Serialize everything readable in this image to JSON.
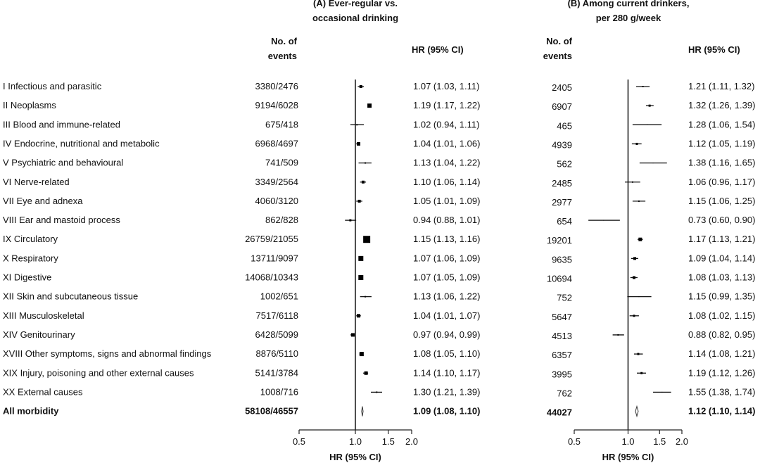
{
  "chart_data": {
    "type": "forest",
    "x_axis_label": "HR (95% CI)",
    "x_scale": "log",
    "x_ticks": [
      0.5,
      1.0,
      1.5,
      2.0
    ],
    "x_tick_labels": [
      "0.5",
      "1.0",
      "1.5",
      "2.0"
    ],
    "reference_line": 1.0,
    "categories": [
      "I Infectious and parasitic",
      "II Neoplasms",
      "III Blood and immune-related",
      "IV Endocrine, nutritional and metabolic",
      "V Psychiatric and behavioural",
      "VI Nerve-related",
      "VII Eye and adnexa",
      "VIII Ear and mastoid process",
      "IX Circulatory",
      "X Respiratory",
      "XI Digestive",
      "XII Skin and subcutaneous tissue",
      "XIII Musculoskeletal",
      "XIV Genitourinary",
      "XVIII Other symptoms, signs and abnormal findings",
      "XIX Injury, poisoning and other external causes",
      "XX External causes",
      "All morbidity"
    ],
    "panels": [
      {
        "title_line1": "(A) Ever-regular vs.",
        "title_line2": "occasional drinking",
        "events_header_line1": "No. of",
        "events_header_line2": "events",
        "hr_header": "HR (95% CI)",
        "events": [
          "3380/2476",
          "9194/6028",
          "675/418",
          "6968/4697",
          "741/509",
          "3349/2564",
          "4060/3120",
          "862/828",
          "26759/21055",
          "13711/9097",
          "14068/10343",
          "1002/651",
          "7517/6118",
          "6428/5099",
          "8876/5110",
          "5141/3784",
          "1008/716",
          "58108/46557"
        ],
        "hr_text": [
          "1.07 (1.03, 1.11)",
          "1.19 (1.17, 1.22)",
          "1.02 (0.94, 1.11)",
          "1.04 (1.01, 1.06)",
          "1.13 (1.04, 1.22)",
          "1.10 (1.06, 1.14)",
          "1.05 (1.01, 1.09)",
          "0.94 (0.88, 1.01)",
          "1.15 (1.13, 1.16)",
          "1.07 (1.06, 1.09)",
          "1.07 (1.05, 1.09)",
          "1.13 (1.06, 1.22)",
          "1.04 (1.01, 1.07)",
          "0.97 (0.94, 0.99)",
          "1.08 (1.05, 1.10)",
          "1.14 (1.10, 1.17)",
          "1.30 (1.21, 1.39)",
          "1.09 (1.08, 1.10)"
        ],
        "hr": [
          1.07,
          1.19,
          1.02,
          1.04,
          1.13,
          1.1,
          1.05,
          0.94,
          1.15,
          1.07,
          1.07,
          1.13,
          1.04,
          0.97,
          1.08,
          1.14,
          1.3,
          1.09
        ],
        "lo": [
          1.03,
          1.17,
          0.94,
          1.01,
          1.04,
          1.06,
          1.01,
          0.88,
          1.13,
          1.06,
          1.05,
          1.06,
          1.01,
          0.94,
          1.05,
          1.1,
          1.21,
          1.08
        ],
        "hi": [
          1.11,
          1.22,
          1.11,
          1.06,
          1.22,
          1.14,
          1.09,
          1.01,
          1.16,
          1.09,
          1.09,
          1.22,
          1.07,
          0.99,
          1.1,
          1.17,
          1.39,
          1.1
        ],
        "box_size": [
          4,
          6,
          2,
          5,
          2,
          4,
          4,
          3,
          10,
          7,
          7,
          2,
          5,
          5,
          6,
          5,
          2,
          0
        ]
      },
      {
        "title_line1": "(B) Among current drinkers,",
        "title_line2": "per 280 g/week",
        "events_header_line1": "No. of",
        "events_header_line2": "events",
        "hr_header": "HR (95% CI)",
        "events": [
          "2405",
          "6907",
          "465",
          "4939",
          "562",
          "2485",
          "2977",
          "654",
          "19201",
          "9635",
          "10694",
          "752",
          "5647",
          "4513",
          "6357",
          "3995",
          "762",
          "44027"
        ],
        "hr_text": [
          "1.21 (1.11, 1.32)",
          "1.32 (1.26, 1.39)",
          "1.28 (1.06, 1.54)",
          "1.12 (1.05, 1.19)",
          "1.38 (1.16, 1.65)",
          "1.06 (0.96, 1.17)",
          "1.15 (1.06, 1.25)",
          "0.73 (0.60, 0.90)",
          "1.17 (1.13, 1.21)",
          "1.09 (1.04, 1.14)",
          "1.08 (1.03, 1.13)",
          "1.15 (0.99, 1.35)",
          "1.08 (1.02, 1.15)",
          "0.88 (0.82, 0.95)",
          "1.14 (1.08, 1.21)",
          "1.19 (1.12, 1.26)",
          "1.55 (1.38, 1.74)",
          "1.12 (1.10, 1.14)"
        ],
        "hr": [
          1.21,
          1.32,
          1.28,
          1.12,
          1.38,
          1.06,
          1.15,
          0.73,
          1.17,
          1.09,
          1.08,
          1.15,
          1.08,
          0.88,
          1.14,
          1.19,
          1.55,
          1.12
        ],
        "lo": [
          1.11,
          1.26,
          1.06,
          1.05,
          1.16,
          0.96,
          1.06,
          0.6,
          1.13,
          1.04,
          1.03,
          0.99,
          1.02,
          0.82,
          1.08,
          1.12,
          1.38,
          1.1
        ],
        "hi": [
          1.32,
          1.39,
          1.54,
          1.19,
          1.65,
          1.17,
          1.25,
          0.9,
          1.21,
          1.14,
          1.13,
          1.35,
          1.15,
          0.95,
          1.21,
          1.26,
          1.74,
          1.14
        ],
        "box_size": [
          2,
          3,
          1,
          3,
          1,
          2,
          2,
          1,
          5,
          4,
          4,
          1,
          3,
          2,
          3,
          3,
          1,
          0
        ]
      }
    ]
  }
}
